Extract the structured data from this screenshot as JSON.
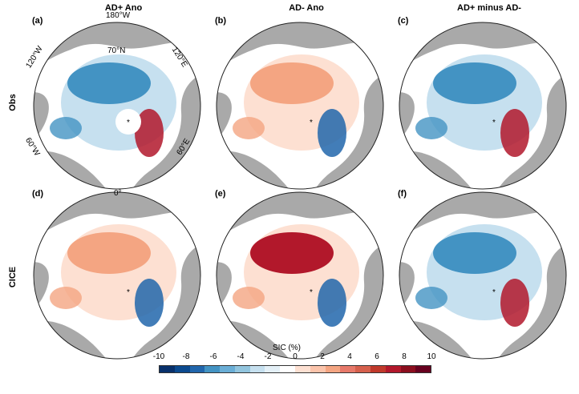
{
  "columns": [
    "AD+ Ano",
    "AD- Ano",
    "AD+ minus AD-"
  ],
  "rows": [
    "Obs",
    "CICE"
  ],
  "panels": [
    "(a)",
    "(b)",
    "(c)",
    "(d)",
    "(e)",
    "(f)"
  ],
  "geo_labels": {
    "top": "180°W",
    "upper_left": "120°W",
    "upper_right": "120°E",
    "lower_left": "60°W",
    "lower_right": "60°E",
    "lat": "70°N",
    "bottom": "0°"
  },
  "colorbar": {
    "label": "SIC (%)",
    "ticks": [
      "-10",
      "-8",
      "-6",
      "-4",
      "-2",
      "0",
      "2",
      "4",
      "6",
      "8",
      "10"
    ],
    "colors": [
      "#08306b",
      "#0b4a8f",
      "#2166ac",
      "#4393c3",
      "#6aaed6",
      "#92c5de",
      "#c6e0ef",
      "#e4f0f7",
      "#ffffff",
      "#fde0d2",
      "#fbc4ab",
      "#f4a582",
      "#e7796a",
      "#d6604d",
      "#c0392b",
      "#b2182b",
      "#8b0e1e",
      "#67001f"
    ]
  },
  "style": {
    "land": "#a9a9a9",
    "ocean": "#ffffff",
    "neg": "#2166ac",
    "pos": "#b2182b"
  }
}
